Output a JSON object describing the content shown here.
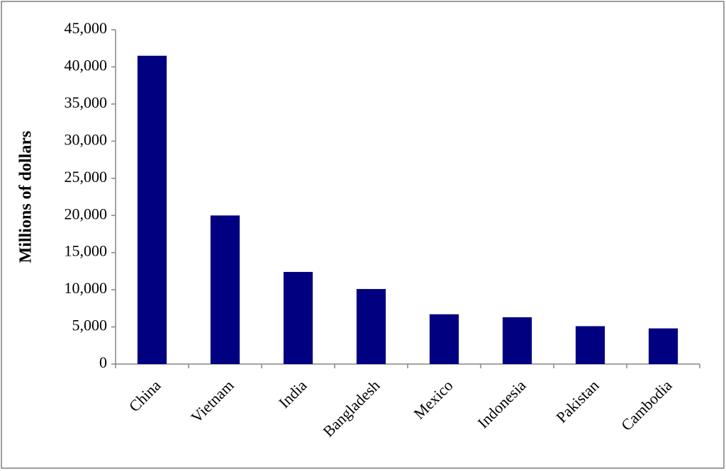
{
  "chart_data": {
    "type": "bar",
    "y_label": "Millions of dollars",
    "categories": [
      "China",
      "Vietnam",
      "India",
      "Bangladesh",
      "Mexico",
      "Indonesia",
      "Pakistan",
      "Cambodia"
    ],
    "values": [
      41500,
      20000,
      12400,
      10100,
      6700,
      6300,
      5100,
      4800
    ],
    "color": "#000080",
    "ylim": [
      0,
      45000
    ],
    "yticks": [
      0,
      {
        "value": 5000,
        "label": "5,000"
      },
      {
        "value": 10000,
        "label": "10,000"
      },
      {
        "value": 15000,
        "label": "15,000"
      },
      {
        "value": 20000,
        "label": "20,000"
      },
      {
        "value": 25000,
        "label": "25,000"
      },
      {
        "value": 30000,
        "label": "30,000"
      },
      {
        "value": 35000,
        "label": "35,000"
      },
      {
        "value": 40000,
        "label": "40,000"
      },
      {
        "value": 45000,
        "label": "45,000"
      }
    ],
    "grid": false
  }
}
